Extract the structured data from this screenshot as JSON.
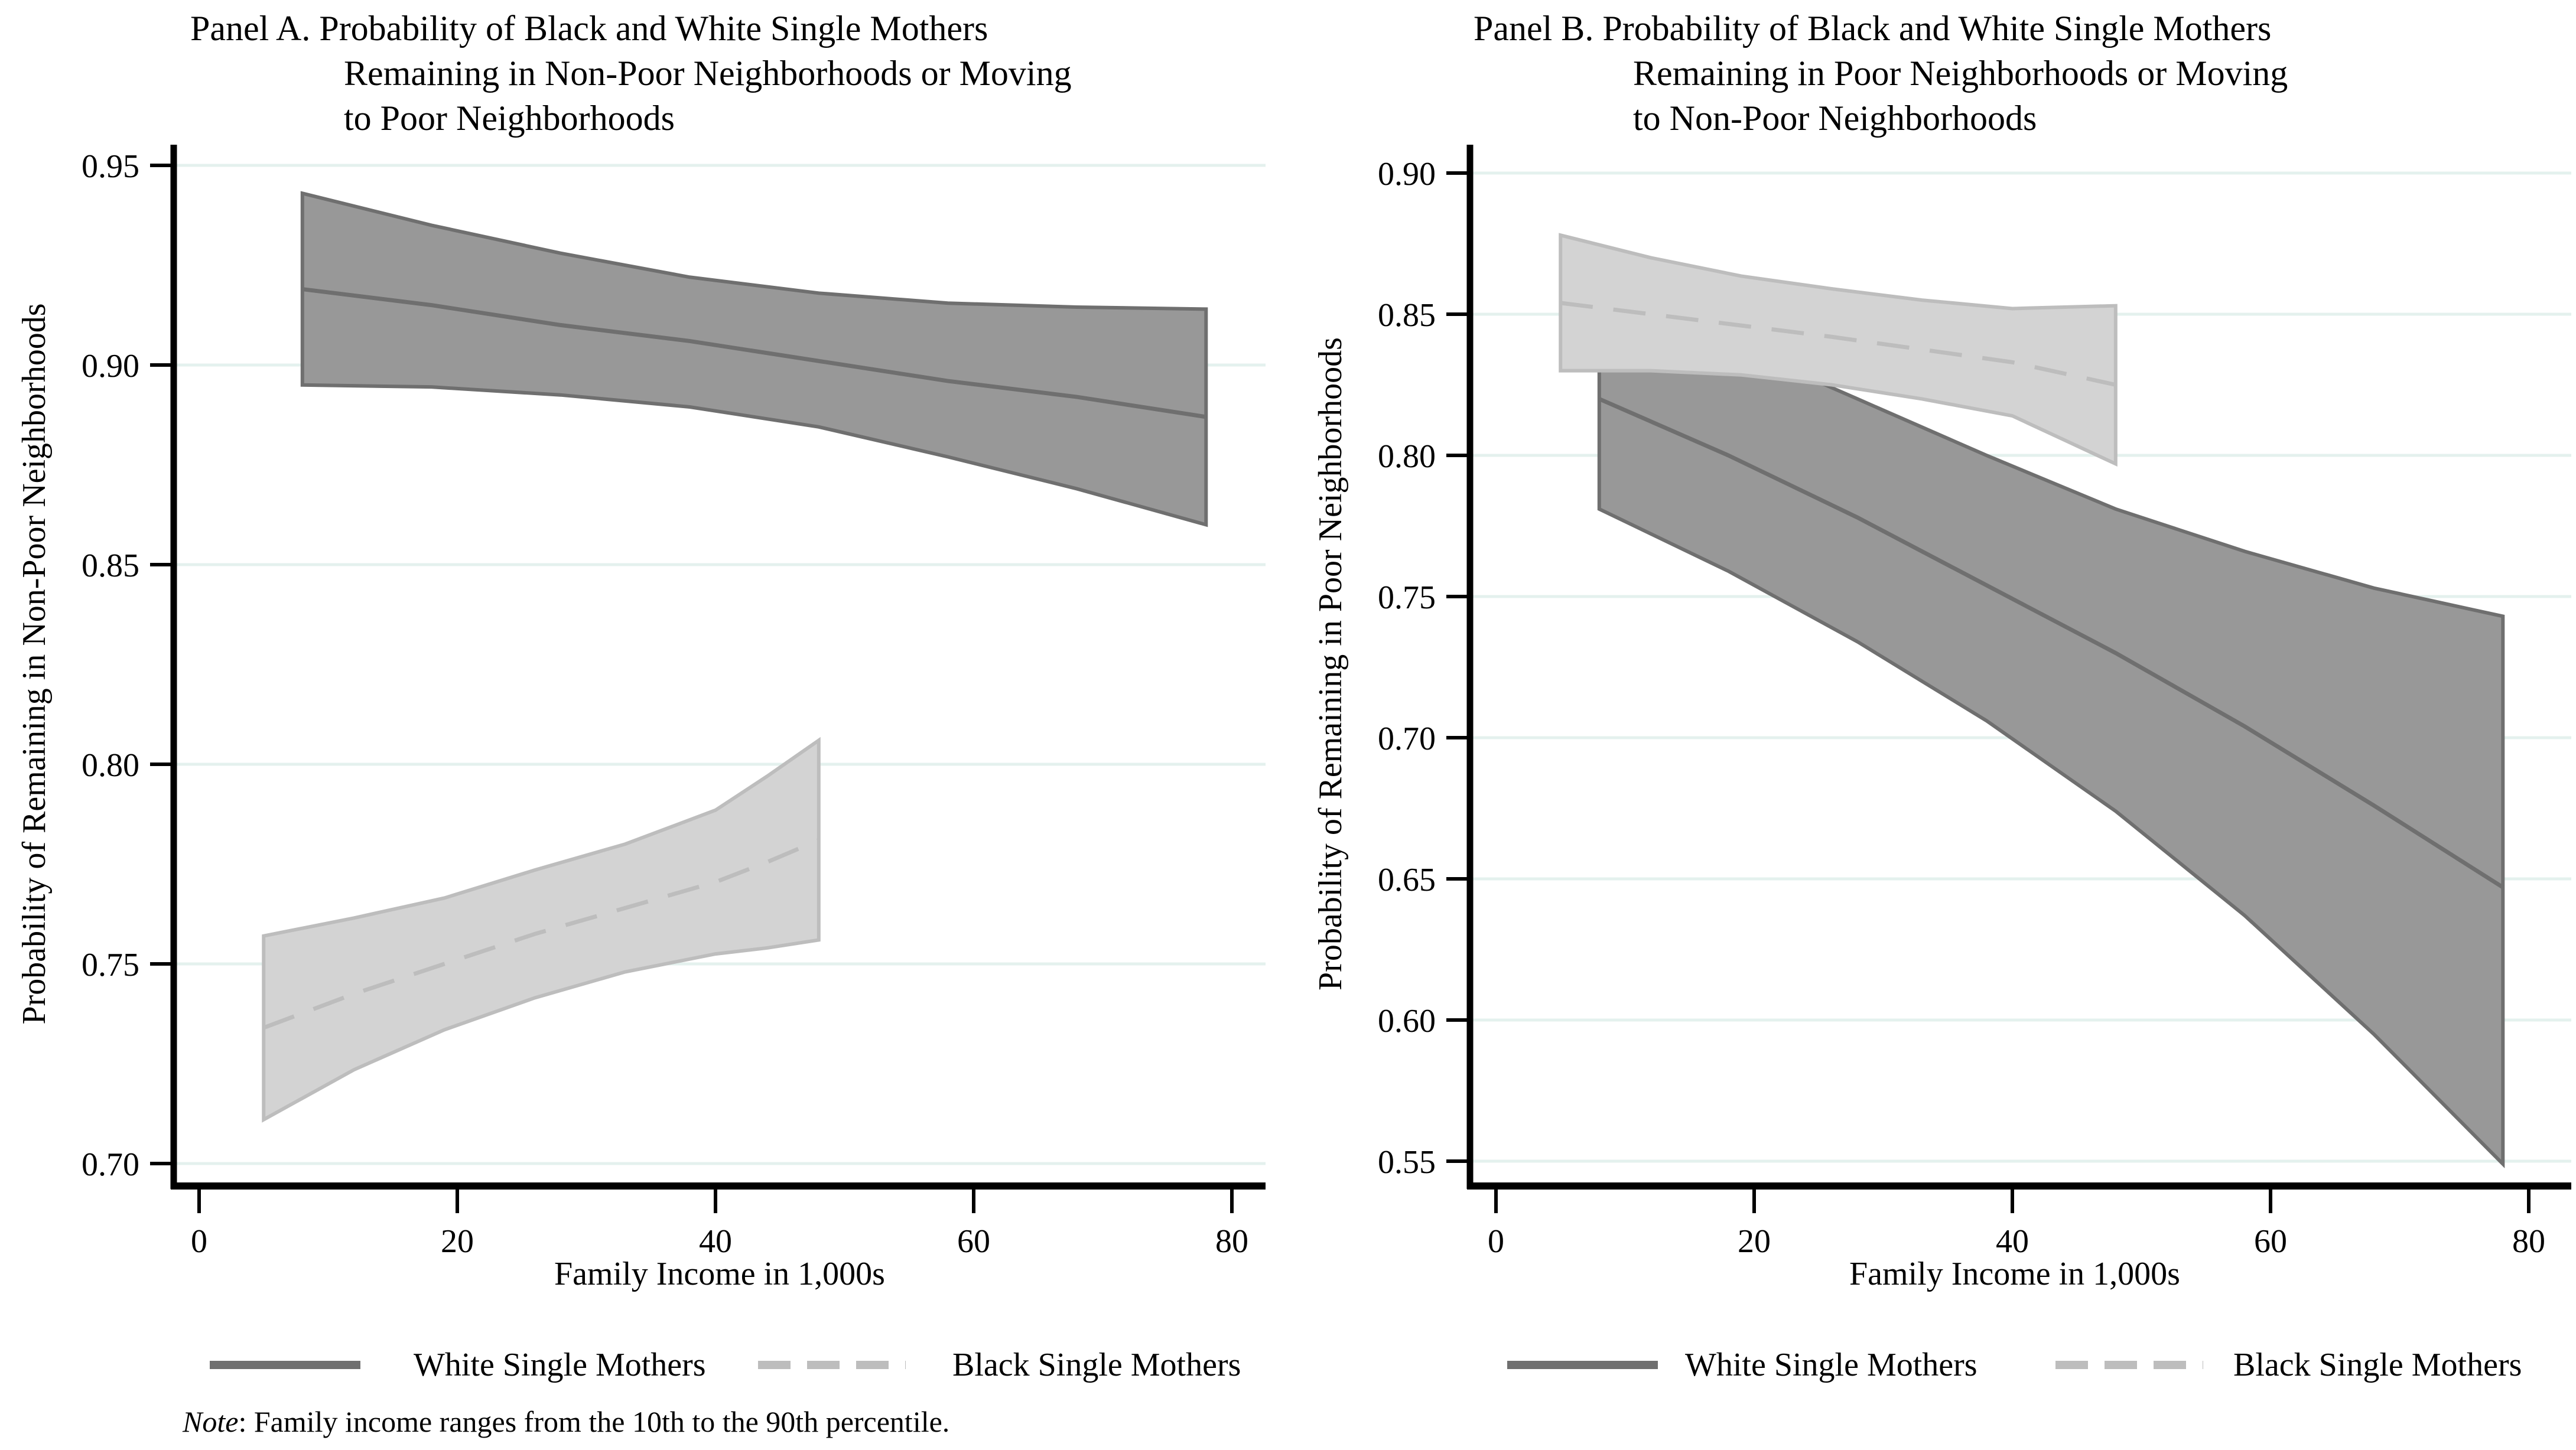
{
  "note": {
    "prefix": "Note",
    "body": ": Family income ranges from the 10th to the 90th percentile."
  },
  "colors": {
    "background": "#ffffff",
    "axis": "#000000",
    "gridline": "#e4f1ee",
    "white_series_line": "#6f6f6f",
    "white_series_fill": "#989898",
    "black_series_line": "#bdbdbd",
    "black_series_fill": "#d3d3d3"
  },
  "chart_data": [
    {
      "panel_label": "A",
      "type": "area",
      "title_lines": [
        "Panel A. Probability of Black and White Single Mothers",
        "Remaining in Non-Poor Neighborhoods or Moving",
        "to Poor Neighborhoods"
      ],
      "xlabel": "Family Income in 1,000s",
      "ylabel": "Probability of Remaining in Non-Poor Neighborhoods",
      "xlim": [
        0,
        80
      ],
      "ylim": [
        0.7,
        0.95
      ],
      "xticks": [
        0,
        20,
        40,
        60,
        80
      ],
      "xtick_labels": [
        "0",
        "20",
        "40",
        "60",
        "80"
      ],
      "yticks": [
        0.7,
        0.75,
        0.8,
        0.85,
        0.9,
        0.95
      ],
      "ytick_labels": [
        "0.70",
        "0.75",
        "0.80",
        "0.85",
        "0.90",
        "0.95"
      ],
      "grid": true,
      "legend_position": "bottom",
      "series": [
        {
          "name": "White Single Mothers",
          "line_style": "solid",
          "line_color": "#6f6f6f",
          "fill_color": "#989898",
          "x": [
            8,
            18,
            28,
            38,
            48,
            58,
            68,
            78
          ],
          "mean": [
            0.919,
            0.915,
            0.91,
            0.906,
            0.901,
            0.896,
            0.892,
            0.887
          ],
          "upper": [
            0.943,
            0.935,
            0.928,
            0.922,
            0.918,
            0.9155,
            0.9145,
            0.914
          ],
          "lower": [
            0.895,
            0.8945,
            0.8925,
            0.8895,
            0.8845,
            0.877,
            0.869,
            0.86
          ]
        },
        {
          "name": "Black Single Mothers",
          "line_style": "dashed",
          "line_color": "#bdbdbd",
          "fill_color": "#d3d3d3",
          "x": [
            5,
            12,
            19,
            26,
            33,
            40,
            44,
            48
          ],
          "mean": [
            0.734,
            0.7425,
            0.75,
            0.7575,
            0.764,
            0.7705,
            0.7755,
            0.781
          ],
          "upper": [
            0.757,
            0.7615,
            0.7665,
            0.7735,
            0.78,
            0.7885,
            0.797,
            0.806
          ],
          "lower": [
            0.711,
            0.7235,
            0.7335,
            0.7415,
            0.748,
            0.7525,
            0.754,
            0.756
          ]
        }
      ]
    },
    {
      "panel_label": "B",
      "type": "area",
      "title_lines": [
        "Panel B. Probability of Black and White Single Mothers",
        "Remaining in Poor Neighborhoods or Moving",
        "to Non-Poor Neighborhoods"
      ],
      "xlabel": "Family Income in 1,000s",
      "ylabel": "Probability of Remaining in Poor Neighborhoods",
      "xlim": [
        0,
        80
      ],
      "ylim": [
        0.55,
        0.9
      ],
      "xticks": [
        0,
        20,
        40,
        60,
        80
      ],
      "xtick_labels": [
        "0",
        "20",
        "40",
        "60",
        "80"
      ],
      "yticks": [
        0.55,
        0.6,
        0.65,
        0.7,
        0.75,
        0.8,
        0.85,
        0.9
      ],
      "ytick_labels": [
        "0.55",
        "0.60",
        "0.65",
        "0.70",
        "0.75",
        "0.80",
        "0.85",
        "0.90"
      ],
      "grid": true,
      "legend_position": "bottom",
      "series": [
        {
          "name": "White Single Mothers",
          "line_style": "solid",
          "line_color": "#6f6f6f",
          "fill_color": "#989898",
          "x": [
            8,
            18,
            28,
            38,
            48,
            58,
            68,
            78
          ],
          "mean": [
            0.82,
            0.8,
            0.778,
            0.754,
            0.73,
            0.704,
            0.676,
            0.647
          ],
          "upper": [
            0.858,
            0.84,
            0.82,
            0.8,
            0.781,
            0.766,
            0.753,
            0.743
          ],
          "lower": [
            0.781,
            0.759,
            0.734,
            0.706,
            0.674,
            0.637,
            0.595,
            0.549
          ]
        },
        {
          "name": "Black Single Mothers",
          "line_style": "dashed",
          "line_color": "#bdbdbd",
          "fill_color": "#d3d3d3",
          "x": [
            5,
            12,
            19,
            26,
            33,
            40,
            44,
            48
          ],
          "mean": [
            0.854,
            0.85,
            0.846,
            0.842,
            0.8375,
            0.833,
            0.829,
            0.825
          ],
          "upper": [
            0.878,
            0.87,
            0.8635,
            0.859,
            0.855,
            0.852,
            0.8525,
            0.853
          ],
          "lower": [
            0.83,
            0.83,
            0.8285,
            0.825,
            0.82,
            0.814,
            0.8055,
            0.797
          ]
        }
      ]
    }
  ]
}
